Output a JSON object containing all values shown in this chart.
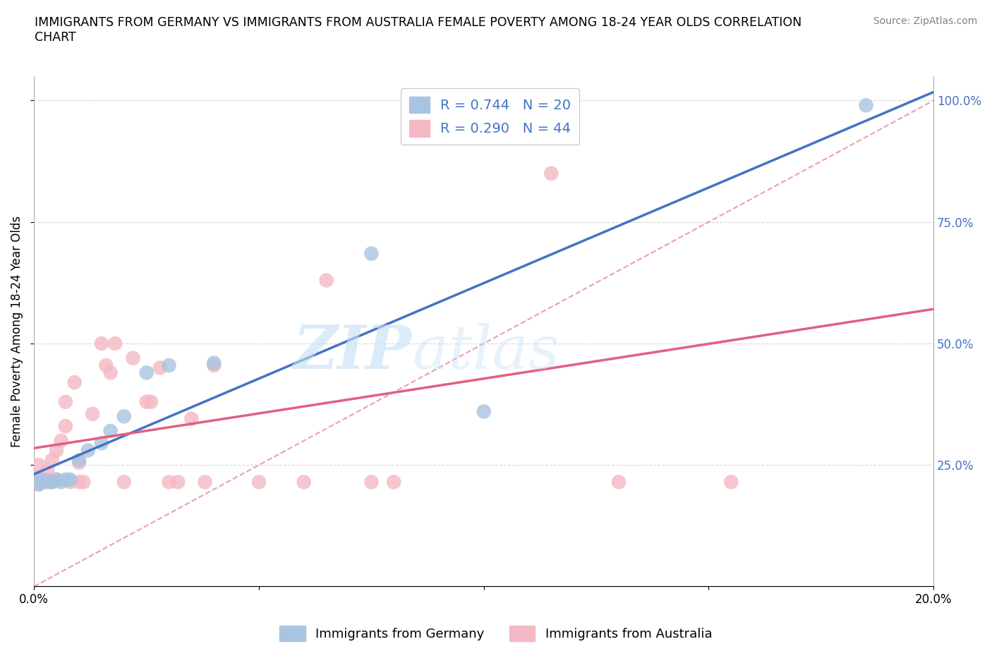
{
  "title": "IMMIGRANTS FROM GERMANY VS IMMIGRANTS FROM AUSTRALIA FEMALE POVERTY AMONG 18-24 YEAR OLDS CORRELATION\nCHART",
  "source": "Source: ZipAtlas.com",
  "ylabel": "Female Poverty Among 18-24 Year Olds",
  "xlim": [
    0.0,
    0.2
  ],
  "ylim": [
    0.0,
    1.05
  ],
  "germany_color": "#a8c4e0",
  "australia_color": "#f4b8c4",
  "germany_line_color": "#4472c4",
  "australia_line_color": "#e06080",
  "diagonal_color": "#e8a0b0",
  "R_germany": 0.744,
  "N_germany": 20,
  "R_australia": 0.29,
  "N_australia": 44,
  "legend_text_color": "#4472c4",
  "germany_scatter_x": [
    0.001,
    0.001,
    0.002,
    0.003,
    0.004,
    0.005,
    0.006,
    0.007,
    0.008,
    0.01,
    0.012,
    0.015,
    0.017,
    0.02,
    0.025,
    0.03,
    0.04,
    0.075,
    0.1,
    0.185
  ],
  "germany_scatter_y": [
    0.21,
    0.22,
    0.22,
    0.215,
    0.215,
    0.22,
    0.215,
    0.22,
    0.22,
    0.26,
    0.28,
    0.295,
    0.32,
    0.35,
    0.44,
    0.455,
    0.46,
    0.685,
    0.36,
    0.99
  ],
  "australia_scatter_x": [
    0.001,
    0.001,
    0.001,
    0.001,
    0.001,
    0.002,
    0.003,
    0.003,
    0.004,
    0.004,
    0.005,
    0.005,
    0.006,
    0.007,
    0.007,
    0.008,
    0.009,
    0.01,
    0.01,
    0.011,
    0.013,
    0.015,
    0.016,
    0.017,
    0.018,
    0.02,
    0.022,
    0.025,
    0.026,
    0.028,
    0.03,
    0.032,
    0.035,
    0.038,
    0.04,
    0.05,
    0.06,
    0.065,
    0.075,
    0.08,
    0.1,
    0.115,
    0.13,
    0.155
  ],
  "australia_scatter_y": [
    0.21,
    0.215,
    0.22,
    0.225,
    0.25,
    0.215,
    0.22,
    0.24,
    0.215,
    0.26,
    0.22,
    0.28,
    0.3,
    0.33,
    0.38,
    0.215,
    0.42,
    0.215,
    0.255,
    0.215,
    0.355,
    0.5,
    0.455,
    0.44,
    0.5,
    0.215,
    0.47,
    0.38,
    0.38,
    0.45,
    0.215,
    0.215,
    0.345,
    0.215,
    0.455,
    0.215,
    0.215,
    0.63,
    0.215,
    0.215,
    0.93,
    0.85,
    0.215,
    0.215
  ],
  "watermark_zip": "ZIP",
  "watermark_atlas": "atlas",
  "background_color": "#ffffff",
  "plot_bg_color": "#ffffff",
  "grid_color": "#d8d8d8"
}
